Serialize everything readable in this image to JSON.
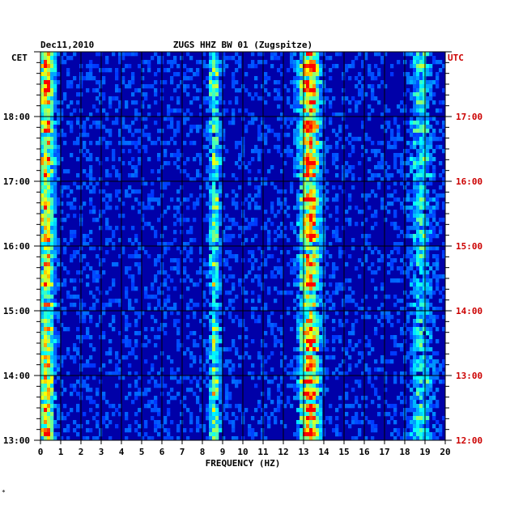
{
  "chart_data": {
    "type": "heatmap",
    "title": "ZUGS HHZ BW 01 (Zugspitze)",
    "date": "Dec11,2010",
    "left_zone": "CET",
    "right_zone": "UTC",
    "xlabel": "FREQUENCY (HZ)",
    "xlim": [
      0,
      20
    ],
    "x_ticks": [
      "0",
      "1",
      "2",
      "3",
      "4",
      "5",
      "6",
      "7",
      "8",
      "9",
      "10",
      "11",
      "12",
      "13",
      "14",
      "15",
      "16",
      "17",
      "18",
      "19",
      "20"
    ],
    "time_range_cet_hours": [
      13.0,
      19.0
    ],
    "left_ticks": [
      {
        "hour": 13,
        "label": "13:00"
      },
      {
        "hour": 14,
        "label": "14:00"
      },
      {
        "hour": 15,
        "label": "15:00"
      },
      {
        "hour": 16,
        "label": "16:00"
      },
      {
        "hour": 17,
        "label": "17:00"
      },
      {
        "hour": 18,
        "label": "18:00"
      }
    ],
    "right_ticks": [
      {
        "hour": 13,
        "label": "12:00"
      },
      {
        "hour": 14,
        "label": "13:00"
      },
      {
        "hour": 15,
        "label": "14:00"
      },
      {
        "hour": 16,
        "label": "15:00"
      },
      {
        "hour": 17,
        "label": "16:00"
      },
      {
        "hour": 18,
        "label": "17:00"
      }
    ],
    "energy_bands_hz": [
      {
        "center": 0.3,
        "width": 0.35,
        "strength": 0.8
      },
      {
        "center": 8.6,
        "width": 0.25,
        "strength": 0.5
      },
      {
        "center": 13.3,
        "width": 0.45,
        "strength": 0.95
      },
      {
        "center": 18.8,
        "width": 0.5,
        "strength": 0.35
      }
    ],
    "colormap": [
      "#000080",
      "#0000ff",
      "#00ffff",
      "#ffff00",
      "#ff0000"
    ],
    "grid": true
  },
  "footnote": "*"
}
